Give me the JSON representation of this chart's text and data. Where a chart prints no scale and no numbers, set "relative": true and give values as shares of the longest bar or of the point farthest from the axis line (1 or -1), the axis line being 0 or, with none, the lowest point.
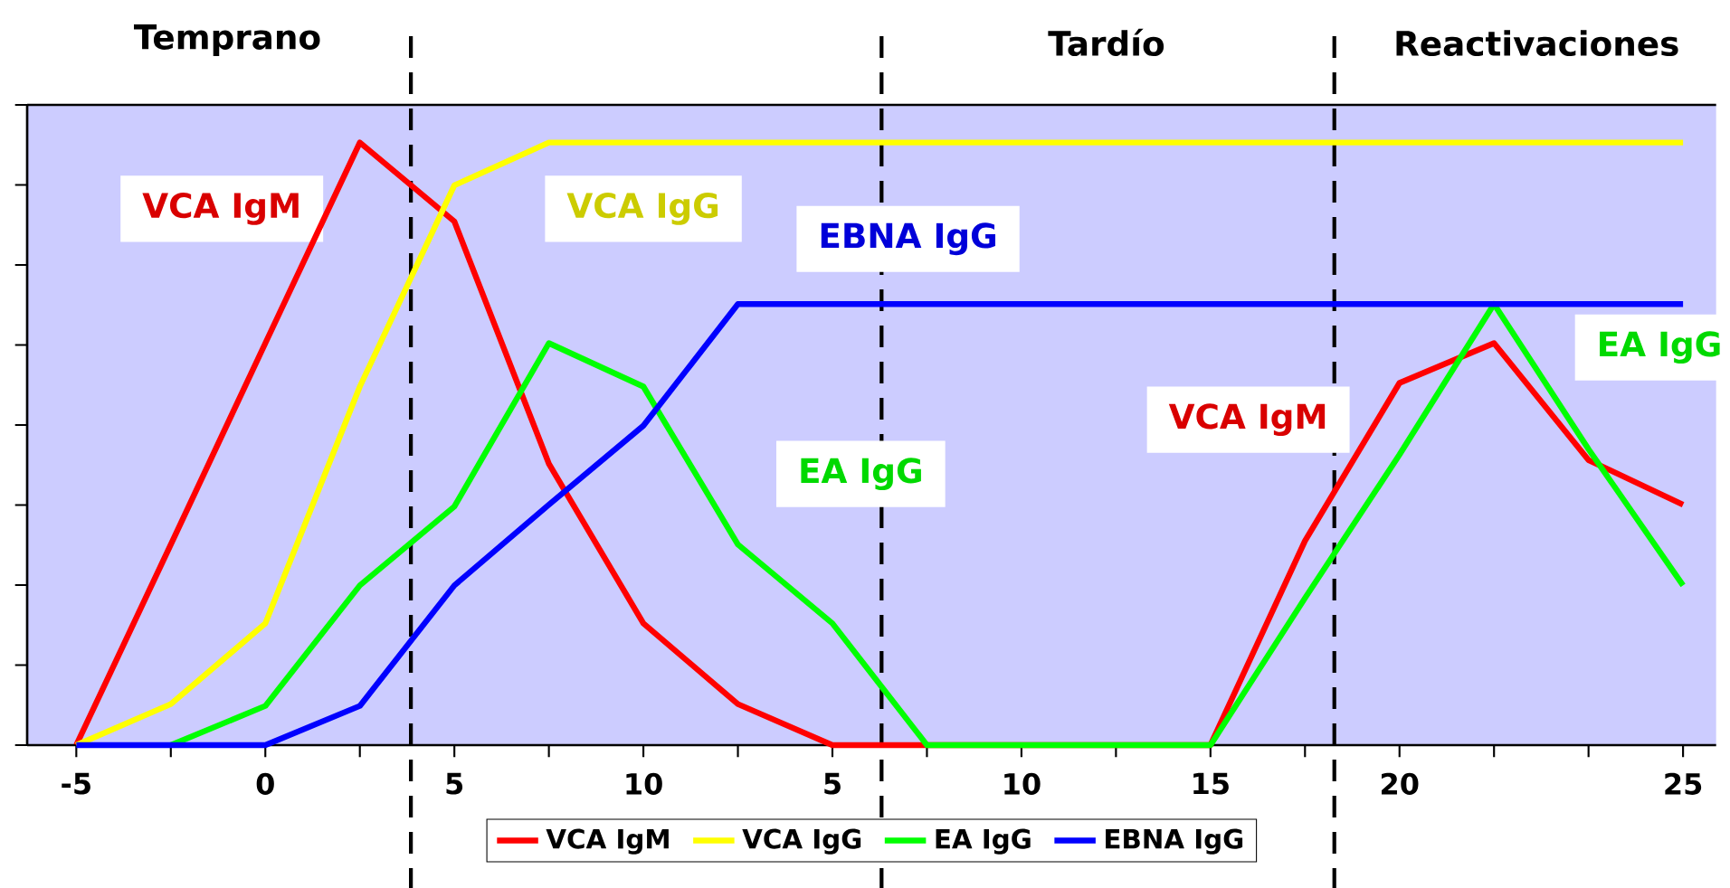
{
  "chart_data": {
    "type": "line",
    "relative": true,
    "categories": [
      "-5",
      null,
      "0",
      null,
      "5",
      null,
      "10",
      null,
      "5",
      null,
      "10",
      null,
      "15",
      null,
      "20",
      null,
      null,
      "25"
    ],
    "series": [
      {
        "name": "VCA IgM",
        "color": "#ff0000",
        "values": [
          0,
          0.333,
          0.667,
          1,
          0.869,
          0.467,
          0.202,
          0.068,
          0,
          0,
          0,
          0,
          0,
          0.339,
          0.601,
          0.667,
          0.473,
          0.399
        ]
      },
      {
        "name": "VCA IgG",
        "color": "#ffff00",
        "values": [
          0,
          0.068,
          0.202,
          0.595,
          0.929,
          1,
          1,
          1,
          1,
          1,
          1,
          1,
          1,
          1,
          1,
          1,
          1,
          1
        ]
      },
      {
        "name": "EA IgG",
        "color": "#00ff00",
        "values": [
          null,
          0,
          0.065,
          0.265,
          0.396,
          0.667,
          0.595,
          0.333,
          0.202,
          0,
          0,
          0,
          0,
          0.244,
          0.482,
          0.732,
          0.491,
          0.265
        ]
      },
      {
        "name": "EBNA IgG",
        "color": "#0000ff",
        "values": [
          0,
          0,
          0,
          0.065,
          0.265,
          0.399,
          0.53,
          0.732,
          0.732,
          0.732,
          0.732,
          0.732,
          0.732,
          0.732,
          0.732,
          0.732,
          0.732,
          0.732
        ]
      }
    ],
    "annotations": [
      "Temprano",
      "Tardío",
      "Reactivaciones"
    ],
    "legend": "bottom",
    "grid": false,
    "tick_labels": "x",
    "marker": "none",
    "line_style": "solid"
  }
}
